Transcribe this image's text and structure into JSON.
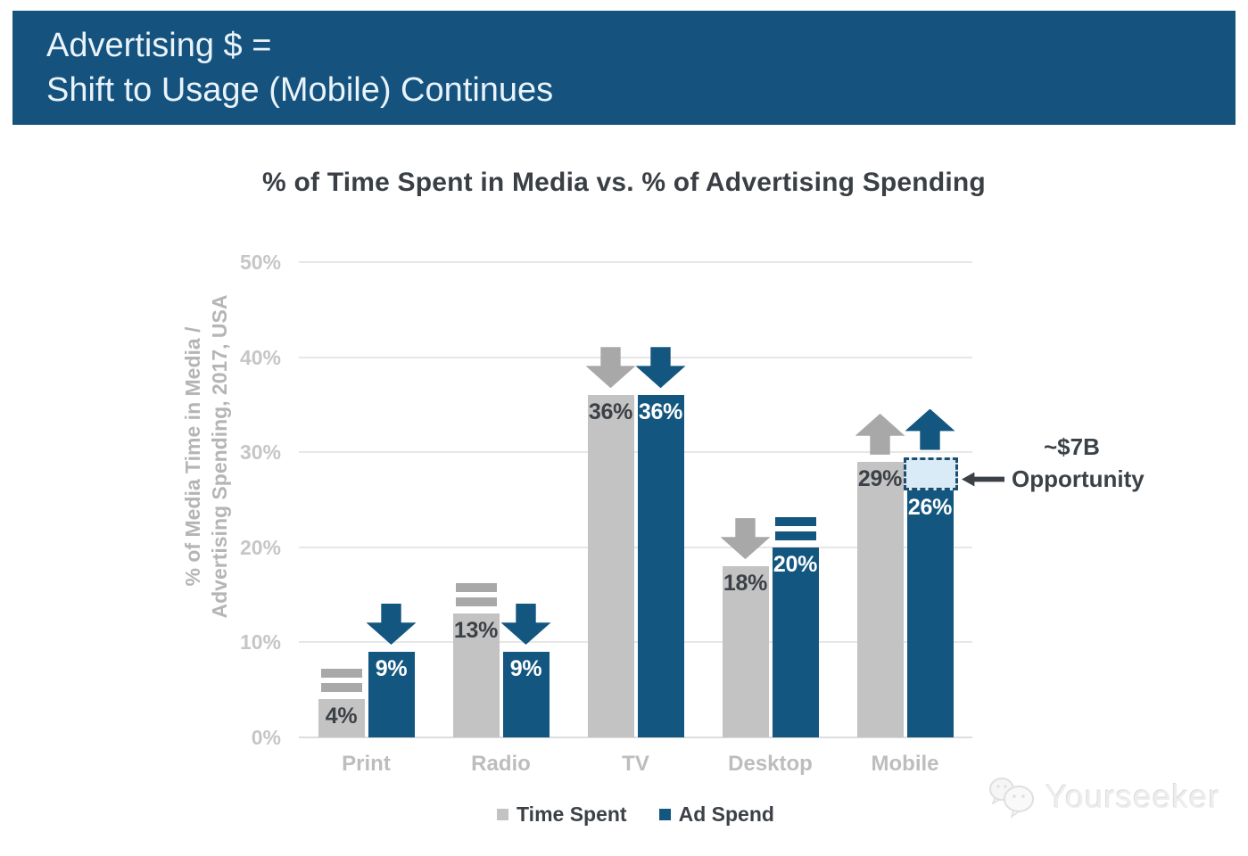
{
  "header": {
    "title_line1": "Advertising $ =",
    "title_line2": "Shift to Usage (Mobile) Continues"
  },
  "chart_data": {
    "type": "bar",
    "title": "% of Time Spent in Media vs. % of Advertising Spending",
    "ylabel_line1": "% of Media Time in Media /",
    "ylabel_line2": "Advertising Spending, 2017, USA",
    "categories": [
      "Print",
      "Radio",
      "TV",
      "Desktop",
      "Mobile"
    ],
    "series": [
      {
        "name": "Time Spent",
        "color": "#C3C3C3",
        "label_color": "#3C4147",
        "trend_color": "#A8A8A8",
        "values": [
          4,
          13,
          36,
          18,
          29
        ],
        "trends": [
          "equal",
          "equal",
          "down",
          "down",
          "up"
        ]
      },
      {
        "name": "Ad Spend",
        "color": "#13567F",
        "label_color": "#FFFFFF",
        "trend_color": "#13567F",
        "values": [
          9,
          9,
          36,
          20,
          26
        ],
        "trends": [
          "down",
          "down",
          "down",
          "equal",
          "up"
        ]
      }
    ],
    "value_suffix": "%",
    "ylim": [
      0,
      50
    ],
    "ytick_step": 10,
    "yticks": [
      "0%",
      "10%",
      "20%",
      "30%",
      "40%",
      "50%"
    ],
    "grid": true,
    "legend_position": "bottom",
    "opportunity_box": {
      "category": "Mobile",
      "series": "Ad Spend",
      "from_value": 26,
      "to_value": 29.5,
      "fill": "#D9EBF7",
      "border": "#1D4E6E"
    },
    "annotation": {
      "line1": "~$7B",
      "line2": "Opportunity"
    }
  },
  "watermark": {
    "text": "Yourseeker"
  }
}
